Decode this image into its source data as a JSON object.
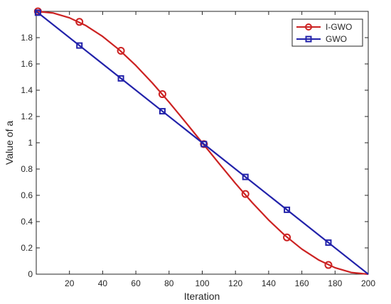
{
  "chart_data": {
    "type": "line",
    "xlabel": "Iteration",
    "ylabel": "Value of a",
    "xlim": [
      0,
      200
    ],
    "ylim": [
      0,
      2
    ],
    "x_ticks": [
      20,
      40,
      60,
      80,
      100,
      120,
      140,
      160,
      180,
      200
    ],
    "y_ticks": [
      0,
      0.2,
      0.4,
      0.6,
      0.8,
      1,
      1.2,
      1.4,
      1.6,
      1.8
    ],
    "grid": false,
    "legend_position": "top-right",
    "series": [
      {
        "name": "I-GWO",
        "color": "#cc2222",
        "marker": "circle",
        "curve": "smooth",
        "x": [
          0,
          10,
          20,
          30,
          40,
          50,
          60,
          70,
          80,
          90,
          100,
          110,
          120,
          130,
          140,
          150,
          160,
          170,
          180,
          190,
          200
        ],
        "values": [
          2.0,
          1.988,
          1.951,
          1.891,
          1.809,
          1.707,
          1.588,
          1.454,
          1.309,
          1.156,
          1.0,
          0.844,
          0.691,
          0.546,
          0.412,
          0.293,
          0.191,
          0.109,
          0.049,
          0.012,
          0.0
        ],
        "marker_x": [
          1,
          26,
          51,
          76,
          101,
          126,
          151,
          176
        ],
        "marker_values": [
          2.0,
          1.92,
          1.7,
          1.37,
          0.99,
          0.61,
          0.28,
          0.07
        ]
      },
      {
        "name": "GWO",
        "color": "#2222aa",
        "marker": "square",
        "curve": "straight",
        "x": [
          0,
          200
        ],
        "values": [
          2.0,
          0.0
        ],
        "marker_x": [
          1,
          26,
          51,
          76,
          101,
          126,
          151,
          176
        ],
        "marker_values": [
          1.99,
          1.74,
          1.49,
          1.24,
          0.99,
          0.74,
          0.49,
          0.24
        ]
      }
    ]
  }
}
